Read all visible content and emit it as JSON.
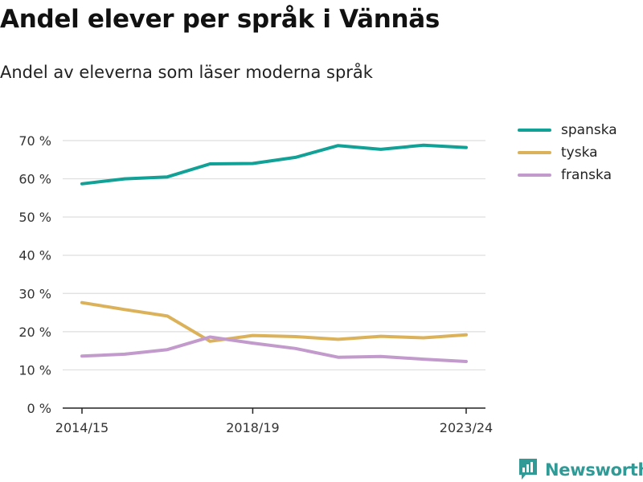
{
  "header": {
    "title": "Andel elever per språk i Vännäs",
    "subtitle": "Andel av eleverna som läser moderna språk"
  },
  "colors": {
    "spanska": "#12a196",
    "tyska": "#dbb25a",
    "franska": "#c29bcc",
    "grid": "#dedede",
    "axis": "#222222",
    "brand": "#2f9a96"
  },
  "chart_data": {
    "type": "line",
    "x": [
      "2014/15",
      "2015/16",
      "2016/17",
      "2017/18",
      "2018/19",
      "2019/20",
      "2020/21",
      "2021/22",
      "2022/23",
      "2023/24"
    ],
    "x_tick_labels": [
      "2014/15",
      "2018/19",
      "2023/24"
    ],
    "y_tick_labels": [
      "0 %",
      "10 %",
      "20 %",
      "30 %",
      "40 %",
      "50 %",
      "60 %",
      "70 %"
    ],
    "ylim": [
      0,
      70
    ],
    "grid": true,
    "legend_position": "right",
    "series": [
      {
        "name": "spanska",
        "values": [
          58.7,
          60.0,
          60.5,
          63.9,
          64.0,
          65.6,
          68.7,
          67.7,
          68.8,
          68.2
        ]
      },
      {
        "name": "tyska",
        "values": [
          27.6,
          25.8,
          24.1,
          17.5,
          19.0,
          18.7,
          18.0,
          18.8,
          18.4,
          19.2
        ]
      },
      {
        "name": "franska",
        "values": [
          13.6,
          14.1,
          15.3,
          18.6,
          17.0,
          15.6,
          13.3,
          13.5,
          12.8,
          12.2
        ]
      }
    ]
  },
  "brand": {
    "name": "Newsworthy",
    "logo_icon": "newsworthy-bar-chart-logo"
  }
}
